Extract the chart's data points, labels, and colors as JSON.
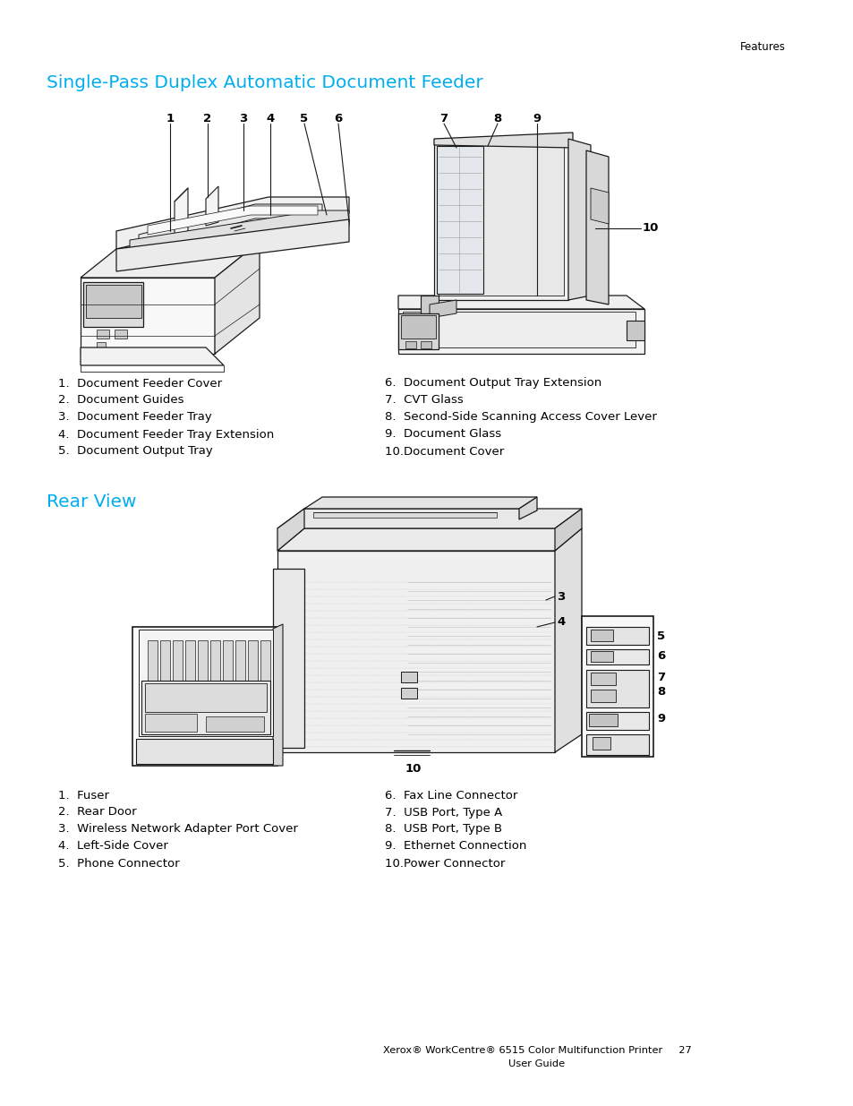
{
  "page_header": "Features",
  "section1_title": "Single-Pass Duplex Automatic Document Feeder",
  "section1_title_color": "#00AEEF",
  "section2_title": "Rear View",
  "section2_title_color": "#00AEEF",
  "section1_items_left": [
    "1.  Document Feeder Cover",
    "2.  Document Guides",
    "3.  Document Feeder Tray",
    "4.  Document Feeder Tray Extension",
    "5.  Document Output Tray"
  ],
  "section1_items_right": [
    "6.  Document Output Tray Extension",
    "7.  CVT Glass",
    "8.  Second-Side Scanning Access Cover Lever",
    "9.  Document Glass",
    "10.Document Cover"
  ],
  "section2_items_left": [
    "1.  Fuser",
    "2.  Rear Door",
    "3.  Wireless Network Adapter Port Cover",
    "4.  Left-Side Cover",
    "5.  Phone Connector"
  ],
  "section2_items_right": [
    "6.  Fax Line Connector",
    "7.  USB Port, Type A",
    "8.  USB Port, Type B",
    "9.  Ethernet Connection",
    "10.Power Connector"
  ],
  "footer_line1": "Xerox® WorkCentre® 6515 Color Multifunction Printer     27",
  "footer_line2": "User Guide",
  "background_color": "#ffffff",
  "text_color": "#000000",
  "body_font_size": 9.5,
  "title_font_size": 14.5,
  "header_font_size": 8.5,
  "label_font_size": 9.5
}
